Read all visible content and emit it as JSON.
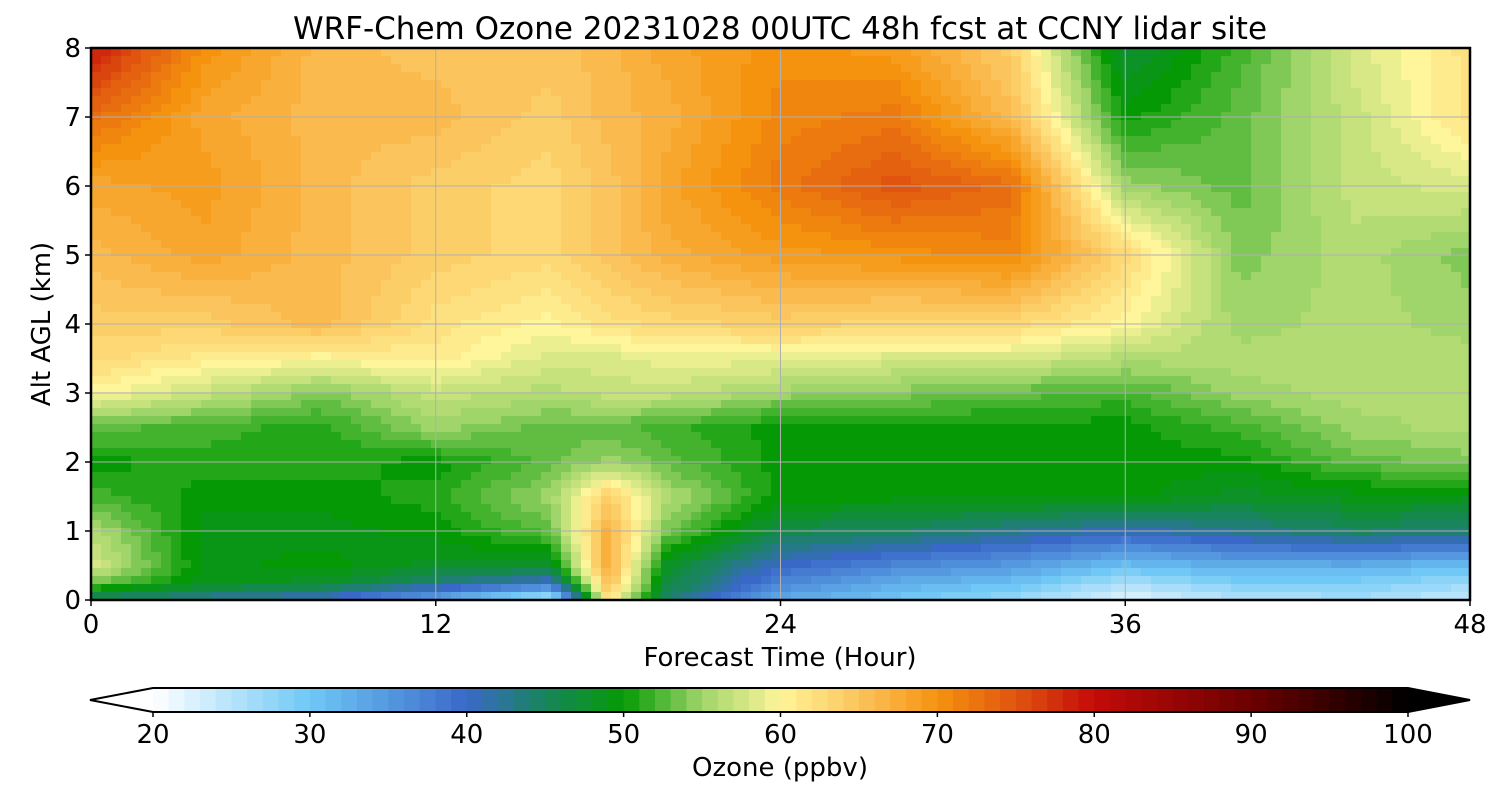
{
  "chart_data": {
    "type": "heatmap",
    "title": "WRF-Chem Ozone  20231028 00UTC 48h fcst at CCNY lidar site",
    "xlabel": "Forecast Time (Hour)",
    "ylabel": "Alt AGL (km)",
    "xlim": [
      0,
      48
    ],
    "ylim": [
      0,
      8
    ],
    "xticks": [
      "0",
      "12",
      "24",
      "36",
      "48"
    ],
    "yticks": [
      "0",
      "1",
      "2",
      "3",
      "4",
      "5",
      "6",
      "7",
      "8"
    ],
    "grid": true,
    "x": [
      0,
      4,
      8,
      12,
      16,
      18,
      20,
      24,
      28,
      32,
      36,
      40,
      44,
      48
    ],
    "y": [
      0,
      0.25,
      0.5,
      1,
      1.5,
      2,
      2.5,
      3,
      3.5,
      4,
      5,
      6,
      7,
      8
    ],
    "z": [
      [
        44,
        42,
        40,
        33,
        24,
        62,
        45,
        33,
        30,
        27,
        22,
        25,
        26,
        24
      ],
      [
        54,
        49,
        48,
        44,
        40,
        66,
        47,
        37,
        33,
        31,
        26,
        29,
        29,
        27
      ],
      [
        58,
        49,
        50,
        48,
        48,
        68,
        48,
        40,
        37,
        35,
        31,
        33,
        33,
        31
      ],
      [
        56,
        49,
        49,
        50,
        53,
        67,
        54,
        46,
        45,
        43,
        41,
        43,
        45,
        44
      ],
      [
        52,
        50,
        50,
        51,
        55,
        64,
        56,
        50,
        50,
        50,
        50,
        48,
        49,
        49
      ],
      [
        50,
        51,
        51,
        50,
        53,
        55,
        53,
        50,
        50,
        50,
        50,
        50,
        53,
        54
      ],
      [
        53,
        52,
        51,
        55,
        53,
        53,
        52,
        50,
        50,
        50,
        50,
        52,
        55,
        56
      ],
      [
        60,
        57,
        54,
        57,
        56,
        57,
        57,
        55,
        54,
        53,
        52,
        55,
        56,
        56
      ],
      [
        63,
        61,
        60,
        61,
        58,
        58,
        59,
        59,
        58,
        58,
        56,
        56,
        56,
        56
      ],
      [
        64,
        64,
        66,
        62,
        60,
        62,
        63,
        64,
        63,
        63,
        60,
        55,
        56,
        55
      ],
      [
        66,
        68,
        66,
        64,
        63,
        65,
        67,
        69,
        70,
        71,
        63,
        54,
        56,
        54
      ],
      [
        68,
        69,
        66,
        64,
        63,
        65,
        68,
        72,
        75,
        73,
        55,
        53,
        57,
        58
      ],
      [
        73,
        68,
        66,
        66,
        64,
        66,
        67,
        71,
        72,
        66,
        50,
        53,
        57,
        62
      ],
      [
        79,
        70,
        66,
        65,
        65,
        66,
        68,
        70,
        69,
        64,
        47,
        52,
        58,
        62
      ]
    ],
    "colorbar": {
      "label": "Ozone  (ppbv)",
      "range": [
        20,
        100
      ],
      "ticks": [
        "20",
        "30",
        "40",
        "50",
        "60",
        "70",
        "80",
        "90",
        "100"
      ],
      "extend": "both",
      "stops": [
        {
          "v": 20,
          "c": "#ffffff"
        },
        {
          "v": 30,
          "c": "#6fc8f6"
        },
        {
          "v": 40,
          "c": "#3a68c8"
        },
        {
          "v": 45,
          "c": "#18855c"
        },
        {
          "v": 50,
          "c": "#059a05"
        },
        {
          "v": 55,
          "c": "#9fd56a"
        },
        {
          "v": 60,
          "c": "#fff59a"
        },
        {
          "v": 65,
          "c": "#fbc45c"
        },
        {
          "v": 70,
          "c": "#f5930f"
        },
        {
          "v": 75,
          "c": "#e05410"
        },
        {
          "v": 80,
          "c": "#c40a08"
        },
        {
          "v": 90,
          "c": "#6b0000"
        },
        {
          "v": 100,
          "c": "#000000"
        }
      ]
    }
  }
}
